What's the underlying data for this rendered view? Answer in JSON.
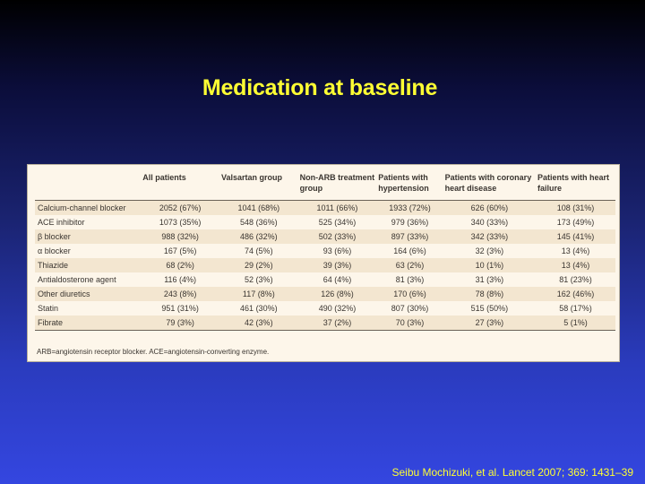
{
  "slide": {
    "title": "Medication at baseline",
    "citation": "Seibu Mochizuki, et al. Lancet 2007; 369: 1431–39"
  },
  "table": {
    "headers": [
      "",
      "All patients",
      "Valsartan group",
      "Non-ARB treatment group",
      "Patients with hypertension",
      "Patients with coronary heart disease",
      "Patients with heart failure"
    ],
    "rows": [
      {
        "label": "Calcium-channel blocker",
        "cells": [
          "2052 (67%)",
          "1041 (68%)",
          "1011 (66%)",
          "1933 (72%)",
          "626 (60%)",
          "108 (31%)"
        ]
      },
      {
        "label": "ACE inhibitor",
        "cells": [
          "1073 (35%)",
          "548 (36%)",
          "525 (34%)",
          "979 (36%)",
          "340 (33%)",
          "173 (49%)"
        ]
      },
      {
        "label": "β blocker",
        "cells": [
          "988 (32%)",
          "486 (32%)",
          "502 (33%)",
          "897 (33%)",
          "342 (33%)",
          "145 (41%)"
        ]
      },
      {
        "label": "α blocker",
        "cells": [
          "167 (5%)",
          "74 (5%)",
          "93 (6%)",
          "164 (6%)",
          "32 (3%)",
          "13 (4%)"
        ]
      },
      {
        "label": "Thiazide",
        "cells": [
          "68 (2%)",
          "29 (2%)",
          "39 (3%)",
          "63 (2%)",
          "10 (1%)",
          "13 (4%)"
        ]
      },
      {
        "label": "Antialdosterone agent",
        "cells": [
          "116 (4%)",
          "52 (3%)",
          "64 (4%)",
          "81 (3%)",
          "31 (3%)",
          "81 (23%)"
        ]
      },
      {
        "label": "Other diuretics",
        "cells": [
          "243 (8%)",
          "117 (8%)",
          "126 (8%)",
          "170 (6%)",
          "78 (8%)",
          "162 (46%)"
        ]
      },
      {
        "label": "Statin",
        "cells": [
          "951 (31%)",
          "461 (30%)",
          "490 (32%)",
          "807 (30%)",
          "515 (50%)",
          "58 (17%)"
        ]
      },
      {
        "label": "Fibrate",
        "cells": [
          "79 (3%)",
          "42 (3%)",
          "37 (2%)",
          "70 (3%)",
          "27 (3%)",
          "5 (1%)"
        ]
      }
    ],
    "footnote": "ARB=angiotensin receptor blocker. ACE=angiotensin-converting enzyme."
  },
  "colors": {
    "title": "#ffff33",
    "panel": "#fdf6ea",
    "row_alt": "#f3e6d0"
  }
}
